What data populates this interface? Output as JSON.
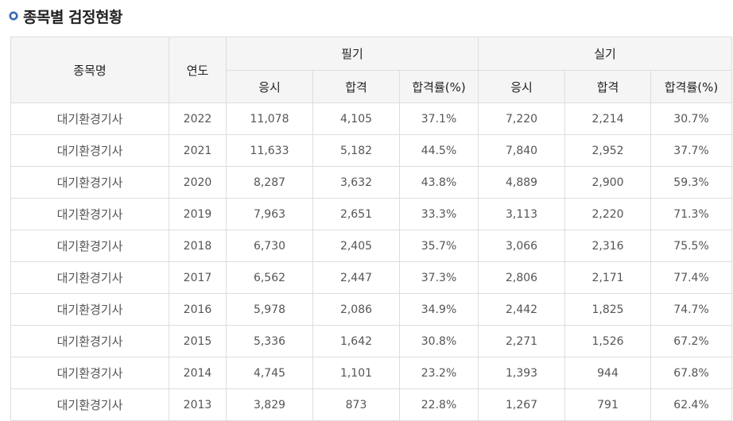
{
  "title": "종목별 검정현황",
  "header": {
    "name": "종목명",
    "year": "연도",
    "written": "필기",
    "practical": "실기",
    "apply": "응시",
    "pass": "합격",
    "rate": "합격률(%)"
  },
  "rows": [
    {
      "name": "대기환경기사",
      "year": "2022",
      "w_apply": "11,078",
      "w_pass": "4,105",
      "w_rate": "37.1%",
      "p_apply": "7,220",
      "p_pass": "2,214",
      "p_rate": "30.7%"
    },
    {
      "name": "대기환경기사",
      "year": "2021",
      "w_apply": "11,633",
      "w_pass": "5,182",
      "w_rate": "44.5%",
      "p_apply": "7,840",
      "p_pass": "2,952",
      "p_rate": "37.7%"
    },
    {
      "name": "대기환경기사",
      "year": "2020",
      "w_apply": "8,287",
      "w_pass": "3,632",
      "w_rate": "43.8%",
      "p_apply": "4,889",
      "p_pass": "2,900",
      "p_rate": "59.3%"
    },
    {
      "name": "대기환경기사",
      "year": "2019",
      "w_apply": "7,963",
      "w_pass": "2,651",
      "w_rate": "33.3%",
      "p_apply": "3,113",
      "p_pass": "2,220",
      "p_rate": "71.3%"
    },
    {
      "name": "대기환경기사",
      "year": "2018",
      "w_apply": "6,730",
      "w_pass": "2,405",
      "w_rate": "35.7%",
      "p_apply": "3,066",
      "p_pass": "2,316",
      "p_rate": "75.5%"
    },
    {
      "name": "대기환경기사",
      "year": "2017",
      "w_apply": "6,562",
      "w_pass": "2,447",
      "w_rate": "37.3%",
      "p_apply": "2,806",
      "p_pass": "2,171",
      "p_rate": "77.4%"
    },
    {
      "name": "대기환경기사",
      "year": "2016",
      "w_apply": "5,978",
      "w_pass": "2,086",
      "w_rate": "34.9%",
      "p_apply": "2,442",
      "p_pass": "1,825",
      "p_rate": "74.7%"
    },
    {
      "name": "대기환경기사",
      "year": "2015",
      "w_apply": "5,336",
      "w_pass": "1,642",
      "w_rate": "30.8%",
      "p_apply": "2,271",
      "p_pass": "1,526",
      "p_rate": "67.2%"
    },
    {
      "name": "대기환경기사",
      "year": "2014",
      "w_apply": "4,745",
      "w_pass": "1,101",
      "w_rate": "23.2%",
      "p_apply": "1,393",
      "p_pass": "944",
      "p_rate": "67.8%"
    },
    {
      "name": "대기환경기사",
      "year": "2013",
      "w_apply": "3,829",
      "w_pass": "873",
      "w_rate": "22.8%",
      "p_apply": "1,267",
      "p_pass": "791",
      "p_rate": "62.4%"
    }
  ]
}
